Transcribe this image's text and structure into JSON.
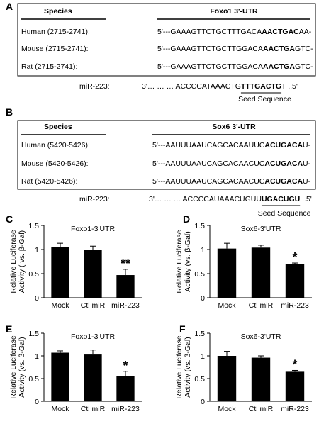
{
  "panels": [
    {
      "label": "A",
      "header": {
        "species": "Species",
        "utr": "Foxo1 3'-UTR"
      },
      "rows": [
        {
          "species": "Human (2715-2741):",
          "seq": [
            "5'---GAAAGTTCTGCTTTGACA",
            "AACTGAC",
            "AA-"
          ]
        },
        {
          "species": "Mouse (2715-2741):",
          "seq": [
            "5'---GAAAGTTCTGCTTGGACA",
            "AACTGA",
            "GTC-"
          ]
        },
        {
          "species": "Rat (2715-2741):",
          "seq": [
            "5'---GAAAGTTCTGCTTGGACA",
            "AACTGA",
            "GTC-"
          ]
        }
      ],
      "mirna": {
        "name": "miR-223:",
        "seq": [
          "3'… … … ACCCCATAAACTG",
          "TTTGACTG",
          "T ..5'"
        ]
      },
      "seed": "Seed Sequence"
    },
    {
      "label": "B",
      "header": {
        "species": "Species",
        "utr": "Sox6 3'-UTR"
      },
      "rows": [
        {
          "species": "Human (5420-5426):",
          "seq": [
            "5'---AAUUUAAUCAGCACAAUUC",
            "ACUGACA",
            "U-"
          ]
        },
        {
          "species": "Mouse (5420-5426):",
          "seq": [
            "5'---AAUUUAAUCAGCACAACUC",
            "ACUGACA",
            "U-"
          ]
        },
        {
          "species": "Rat (5420-5426):",
          "seq": [
            "5'---AAUUUAAUCAGCACAACUC",
            "ACUGACA",
            "U-"
          ]
        }
      ],
      "mirna": {
        "name": "miR-223:",
        "seq": [
          "3'… … … ACCCCAUAAACUGUU",
          "UGACUGU",
          " ..5'"
        ]
      },
      "seed": "Seed Sequence"
    }
  ],
  "chart_data": [
    {
      "type": "bar",
      "panel": "C",
      "title": "Foxo1-3'UTR",
      "ylabel": [
        "Relative Luciferase",
        "Activity ( vs. β-Gal)"
      ],
      "categories": [
        "Mock",
        "Ctl miR",
        "miR-223"
      ],
      "values": [
        1.05,
        1.0,
        0.47
      ],
      "errors": [
        0.08,
        0.07,
        0.12
      ],
      "annotation": "**",
      "color": "#000000",
      "ylim": [
        0,
        1.5
      ],
      "yticks": [
        0,
        0.5,
        1,
        1.5
      ]
    },
    {
      "type": "bar",
      "panel": "D",
      "title": "Sox6-3'UTR",
      "ylabel": [
        "Relative Luciferase",
        "Activity (vs. β-Gal)"
      ],
      "categories": [
        "Mock",
        "Ctl miR",
        "miR-223"
      ],
      "values": [
        1.02,
        1.04,
        0.7
      ],
      "errors": [
        0.11,
        0.05,
        0.02
      ],
      "annotation": "*",
      "color": "#000000",
      "ylim": [
        0,
        1.5
      ],
      "yticks": [
        0,
        0.5,
        1,
        1.5
      ]
    },
    {
      "type": "bar",
      "panel": "E",
      "title": "Foxo1-3'UTR",
      "ylabel": [
        "Relative Luciferase",
        "Activity (vs. β-Gal)"
      ],
      "categories": [
        "Mock",
        "Ctl miR",
        "miR-223"
      ],
      "values": [
        1.07,
        1.03,
        0.56
      ],
      "errors": [
        0.04,
        0.1,
        0.1
      ],
      "annotation": "*",
      "color": "#000000",
      "ylim": [
        0,
        1.5
      ],
      "yticks": [
        0,
        0.5,
        1,
        1.5
      ]
    },
    {
      "type": "bar",
      "panel": "F",
      "title": "Sox6-3'UTR",
      "ylabel": [
        "Relative Luciferase",
        "Activity (vs. β-Gal)"
      ],
      "categories": [
        "Mock",
        "Ctl miR",
        "miR-223"
      ],
      "values": [
        1.0,
        0.96,
        0.65
      ],
      "errors": [
        0.1,
        0.04,
        0.03
      ],
      "annotation": "*",
      "color": "#000000",
      "ylim": [
        0,
        1.5
      ],
      "yticks": [
        0,
        0.5,
        1,
        1.5
      ]
    }
  ]
}
